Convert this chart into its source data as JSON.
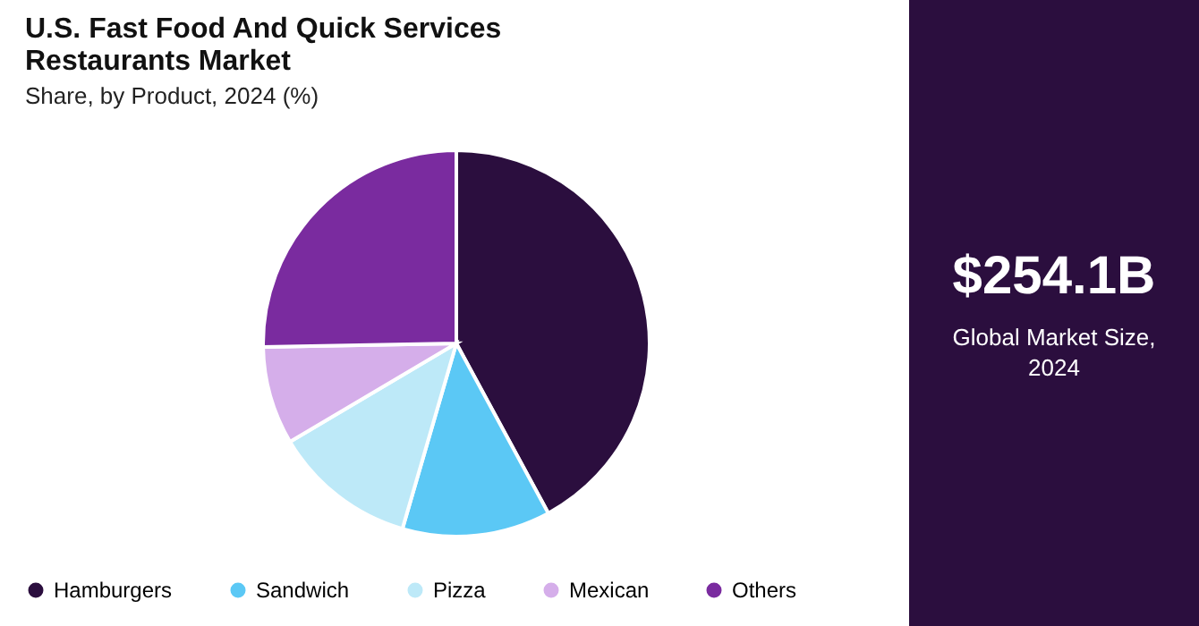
{
  "chart_data": {
    "type": "pie",
    "title": "U.S. Fast Food And Quick Services Restaurants Market",
    "subtitle": "Share, by Product, 2024 (%)",
    "categories": [
      "Hamburgers",
      "Sandwich",
      "Pizza",
      "Mexican",
      "Others"
    ],
    "values": [
      42.1,
      12.4,
      12.0,
      8.2,
      25.3
    ],
    "colors": [
      "#2b0e3e",
      "#5bc8f5",
      "#bde9f8",
      "#d5aeea",
      "#7a2b9f"
    ],
    "legend": "bottom",
    "annotations": [
      "$254.1B",
      "Global Market Size, 2024"
    ]
  }
}
